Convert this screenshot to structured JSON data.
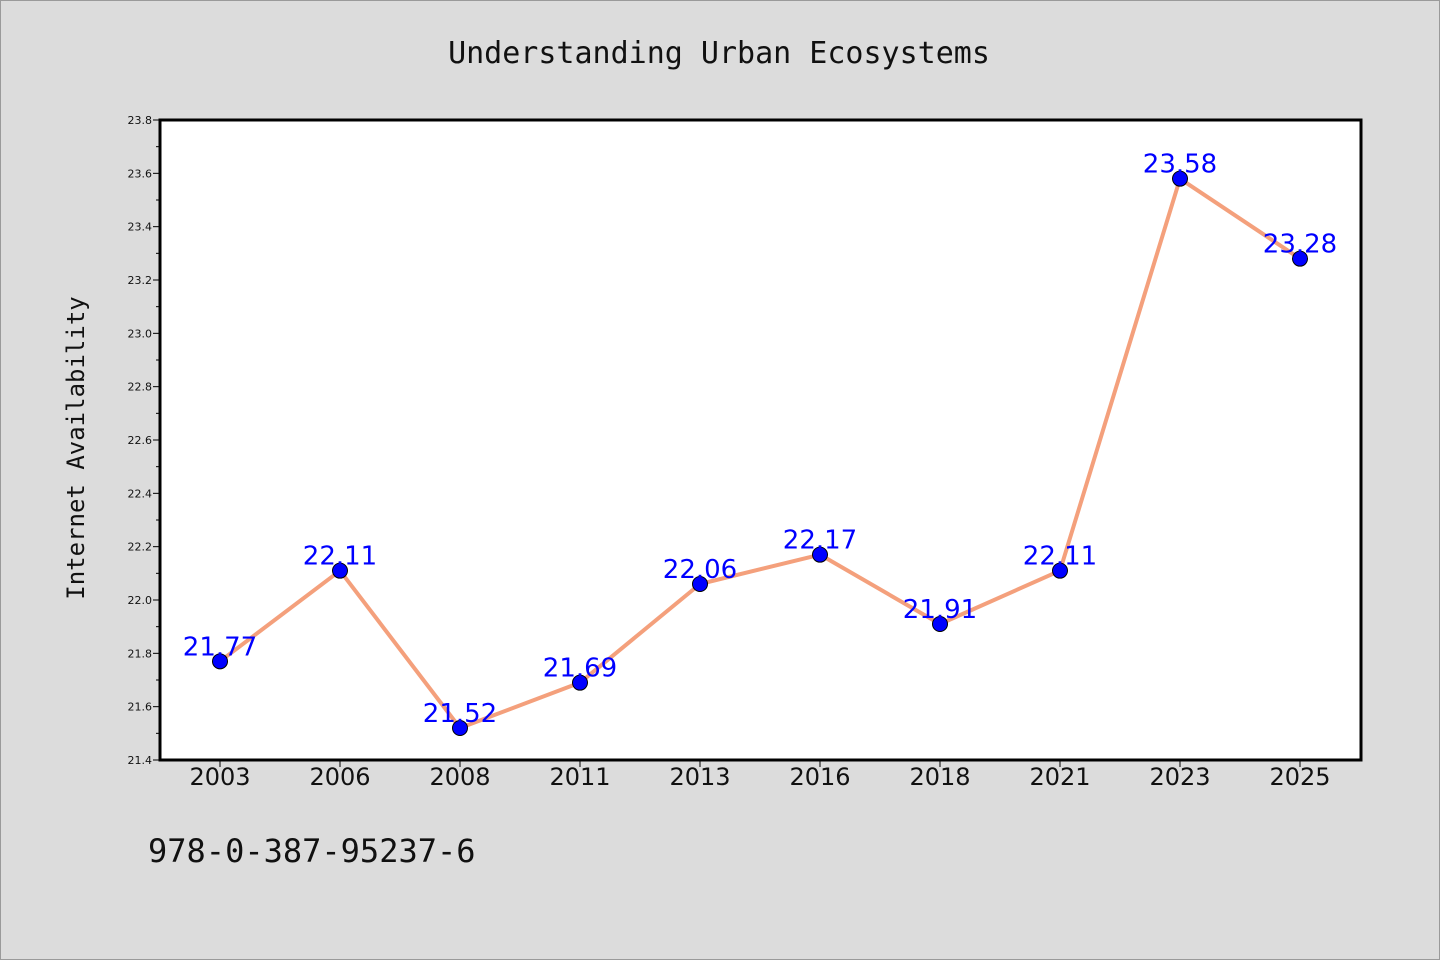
{
  "chart_data": {
    "type": "line",
    "title": "Understanding Urban Ecosystems",
    "xlabel": "",
    "ylabel": "Internet Availability",
    "categories": [
      "2003",
      "2006",
      "2008",
      "2011",
      "2013",
      "2016",
      "2018",
      "2021",
      "2023",
      "2025"
    ],
    "series": [
      {
        "values": [
          21.77,
          22.11,
          21.52,
          21.69,
          22.06,
          22.17,
          21.91,
          22.11,
          23.58,
          23.28
        ],
        "line_color": "#f4a07c",
        "marker_color": "#0000ff"
      }
    ],
    "data_labels": [
      "21.77",
      "22.11",
      "21.52",
      "21.69",
      "22.06",
      "22.17",
      "21.91",
      "22.11",
      "23.58",
      "23.28"
    ],
    "ylim": [
      21.4,
      23.8
    ],
    "yticks": [
      "21.4",
      "21.6",
      "21.8",
      "22.0",
      "22.2",
      "22.4",
      "22.6",
      "22.8",
      "23.0",
      "23.2",
      "23.4",
      "23.6",
      "23.8"
    ],
    "grid": false,
    "legend": "none"
  },
  "footer": {
    "code": "978-0-387-95237-6"
  },
  "colors": {
    "background": "#dcdcdc",
    "plot_area": "#ffffff",
    "line": "#f4a07c",
    "marker": "#0000ff",
    "data_label": "#0000ff"
  }
}
